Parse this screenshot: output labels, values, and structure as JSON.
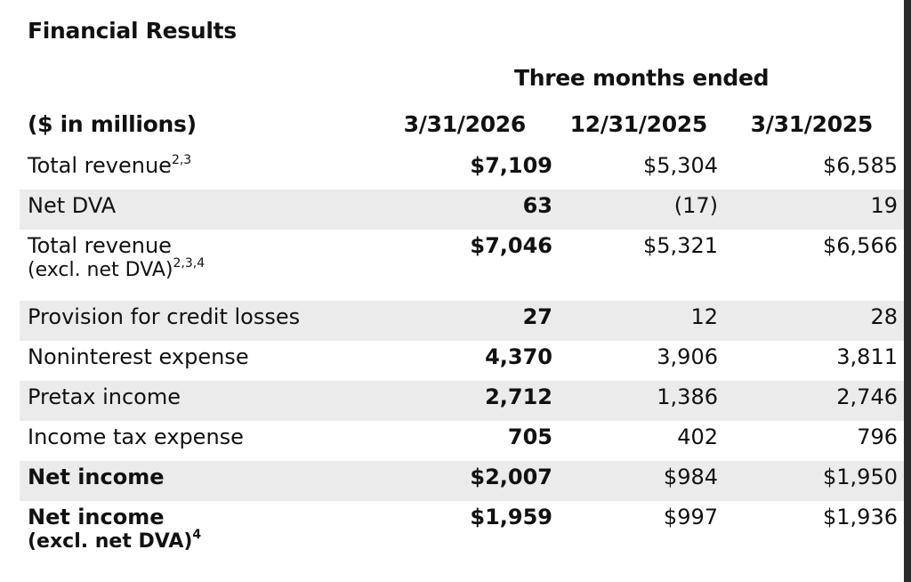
{
  "title": "Financial Results",
  "period_header": "Three months ended",
  "units_label": "($ in millions)",
  "columns": [
    "3/31/2026",
    "12/31/2025",
    "3/31/2025"
  ],
  "rows": [
    {
      "label": "Total revenue",
      "sup": "2,3",
      "sub": "",
      "sub_sup": "",
      "values": [
        "$7,109",
        "$5,304",
        "$6,585"
      ],
      "bold": false,
      "shaded": false
    },
    {
      "label": "Net DVA",
      "sup": "",
      "sub": "",
      "sub_sup": "",
      "values": [
        "63",
        "(17)",
        "19"
      ],
      "bold": false,
      "shaded": true
    },
    {
      "label": "Total revenue",
      "sup": "",
      "sub": "(excl. net DVA)",
      "sub_sup": "2,3,4",
      "values": [
        "$7,046",
        "$5,321",
        "$6,566"
      ],
      "bold": false,
      "shaded": false
    },
    {
      "label": "Provision for credit losses",
      "sup": "",
      "sub": "",
      "sub_sup": "",
      "values": [
        "27",
        "12",
        "28"
      ],
      "bold": false,
      "shaded": true
    },
    {
      "label": "Noninterest expense",
      "sup": "",
      "sub": "",
      "sub_sup": "",
      "values": [
        "4,370",
        "3,906",
        "3,811"
      ],
      "bold": false,
      "shaded": false
    },
    {
      "label": "Pretax income",
      "sup": "",
      "sub": "",
      "sub_sup": "",
      "values": [
        "2,712",
        "1,386",
        "2,746"
      ],
      "bold": false,
      "shaded": true
    },
    {
      "label": "Income tax expense",
      "sup": "",
      "sub": "",
      "sub_sup": "",
      "values": [
        "705",
        "402",
        "796"
      ],
      "bold": false,
      "shaded": false
    },
    {
      "label": "Net income",
      "sup": "",
      "sub": "",
      "sub_sup": "",
      "values": [
        "$2,007",
        "$984",
        "$1,950"
      ],
      "bold": true,
      "shaded": true
    },
    {
      "label": "Net income",
      "sup": "",
      "sub": "(excl. net DVA)",
      "sub_sup": "4",
      "values": [
        "$1,959",
        "$997",
        "$1,936"
      ],
      "bold": true,
      "shaded": false
    }
  ],
  "colors": {
    "shade": "#ebebeb",
    "text": "#111111",
    "background": "#ffffff"
  }
}
